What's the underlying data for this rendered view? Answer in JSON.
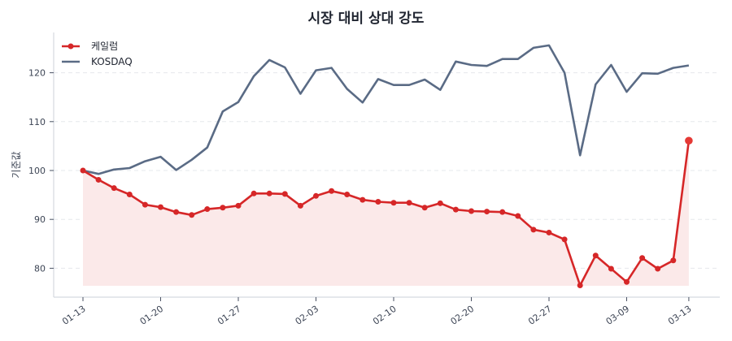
{
  "chart_data": {
    "type": "line",
    "title": "시장 대비 상대 강도",
    "xlabel": "",
    "ylabel": "기준값",
    "ylim": [
      74.2,
      128.5
    ],
    "yticks": [
      80,
      90,
      100,
      110,
      120
    ],
    "grid": {
      "y": true,
      "x": false,
      "style": "dashed"
    },
    "legend_position": "upper left",
    "x_tick_labels": [
      {
        "index": 0,
        "label": "01-13"
      },
      {
        "index": 5,
        "label": "01-20"
      },
      {
        "index": 10,
        "label": "01-27"
      },
      {
        "index": 15,
        "label": "02-03"
      },
      {
        "index": 20,
        "label": "02-10"
      },
      {
        "index": 25,
        "label": "02-20"
      },
      {
        "index": 30,
        "label": "02-27"
      },
      {
        "index": 35,
        "label": "03-09"
      },
      {
        "index": 39,
        "label": "03-13"
      }
    ],
    "point_count": 40,
    "series": [
      {
        "name": "케일럼",
        "color": "#d62728",
        "marker": "circle",
        "fill_below": true,
        "fill_color": "#fbe9e9",
        "values": [
          100.0,
          98.1,
          96.4,
          95.1,
          93.0,
          92.5,
          91.5,
          90.9,
          92.1,
          92.4,
          92.8,
          95.3,
          95.3,
          95.2,
          92.8,
          94.8,
          95.8,
          95.1,
          94.0,
          93.6,
          93.4,
          93.4,
          92.4,
          93.3,
          92.0,
          91.7,
          91.6,
          91.5,
          90.7,
          87.9,
          87.3,
          85.9,
          76.5,
          82.6,
          79.9,
          77.2,
          82.1,
          79.9,
          81.6,
          106.1
        ]
      },
      {
        "name": "KOSDAQ",
        "color": "#5a6b85",
        "marker": "none",
        "fill_below": false,
        "values": [
          100.0,
          99.3,
          100.2,
          100.5,
          101.9,
          102.8,
          100.1,
          102.2,
          104.7,
          112.1,
          114.0,
          119.3,
          122.6,
          121.1,
          115.7,
          120.5,
          121.0,
          116.7,
          113.9,
          118.7,
          117.5,
          117.5,
          118.6,
          116.5,
          122.3,
          121.6,
          121.4,
          122.8,
          122.8,
          125.1,
          125.6,
          120.0,
          103.1,
          117.6,
          121.6,
          116.1,
          119.9,
          119.8,
          121.0,
          121.5
        ]
      }
    ]
  },
  "title": "시장 대비 상대 강도",
  "ylabel": "기준값",
  "legend": [
    {
      "label": "케일럼"
    },
    {
      "label": "KOSDAQ"
    }
  ]
}
